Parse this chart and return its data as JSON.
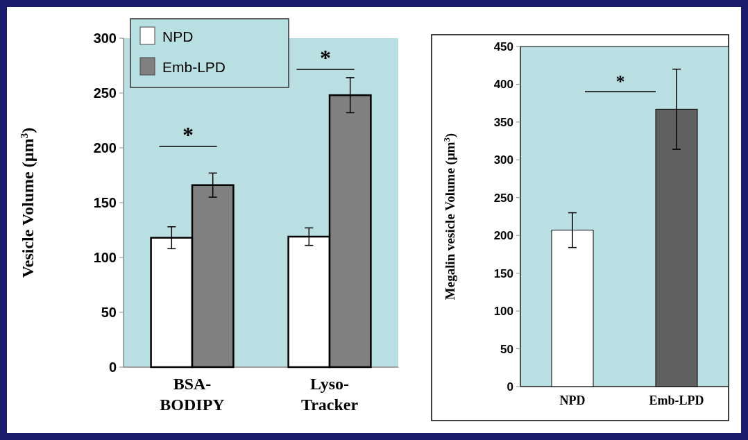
{
  "chart_data": [
    {
      "type": "bar",
      "ylabel": "Vesicle Volume (µm$^{3}$)",
      "categories": [
        "BSA-BODIPY",
        "Lyso-Tracker"
      ],
      "series": [
        {
          "name": "NPD",
          "color": "#ffffff",
          "values": [
            118,
            119
          ],
          "errors": [
            10,
            8
          ]
        },
        {
          "name": "Emb-LPD",
          "color": "#808080",
          "values": [
            166,
            248
          ],
          "errors": [
            11,
            16
          ]
        }
      ],
      "ylim": [
        0,
        300
      ],
      "yticks": [
        0,
        50,
        100,
        150,
        200,
        250,
        300
      ],
      "legend": "top left",
      "annotations": [
        "*",
        "*"
      ]
    },
    {
      "type": "bar",
      "ylabel": "Megalin vesicle Volume (µm$^{3}$)",
      "categories": [
        "NPD",
        "Emb-LPD"
      ],
      "values": [
        207,
        367
      ],
      "errors": [
        23,
        53
      ],
      "colors": [
        "#ffffff",
        "#606060"
      ],
      "ylim": [
        0,
        450
      ],
      "yticks": [
        0,
        50,
        100,
        150,
        200,
        250,
        300,
        350,
        400,
        450
      ],
      "annotations": [
        "*"
      ]
    }
  ]
}
